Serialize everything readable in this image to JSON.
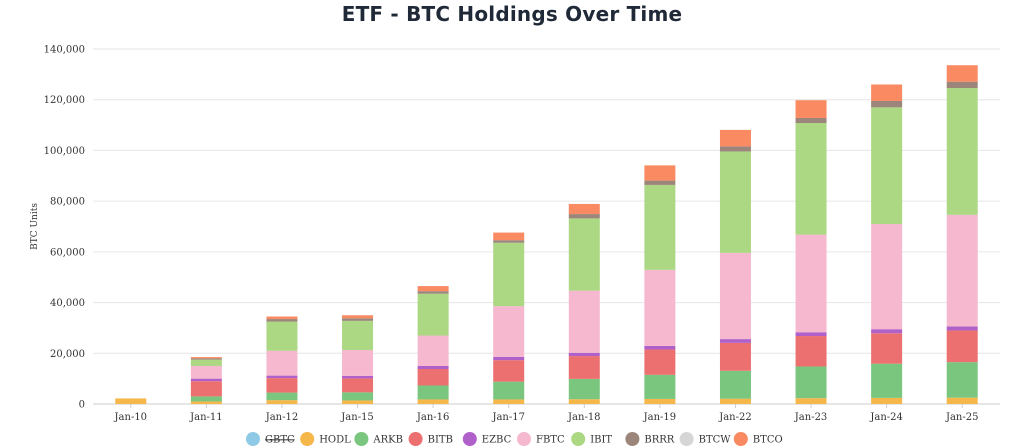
{
  "chart_data": {
    "type": "bar",
    "stacked": true,
    "title": "ETF - BTC Holdings Over Time",
    "xlabel": "",
    "ylabel": "BTC Units",
    "ylim": [
      0,
      140000
    ],
    "yticks": [
      "0",
      "20,000",
      "40,000",
      "60,000",
      "80,000",
      "100,000",
      "120,000",
      "140,000"
    ],
    "grid": true,
    "legend_position": "bottom",
    "categories": [
      "Jan-10",
      "Jan-11",
      "Jan-12",
      "Jan-15",
      "Jan-16",
      "Jan-17",
      "Jan-18",
      "Jan-19",
      "Jan-22",
      "Jan-23",
      "Jan-24",
      "Jan-25"
    ],
    "series": [
      {
        "name": "GBTC",
        "color": "#8ecae6",
        "hidden": true,
        "values": [
          0,
          0,
          0,
          0,
          0,
          0,
          0,
          0,
          0,
          0,
          0,
          0
        ]
      },
      {
        "name": "HODL",
        "color": "#f5b74a",
        "values": [
          2200,
          1000,
          1500,
          1400,
          1800,
          1800,
          1900,
          2000,
          2100,
          2300,
          2400,
          2500
        ]
      },
      {
        "name": "ARKB",
        "color": "#7ac67e",
        "values": [
          0,
          2000,
          3000,
          3200,
          5500,
          7000,
          8000,
          9500,
          11000,
          12500,
          13500,
          14000
        ]
      },
      {
        "name": "BITB",
        "color": "#ec7070",
        "values": [
          0,
          6000,
          5700,
          5500,
          6500,
          8500,
          9000,
          10000,
          11000,
          12000,
          12000,
          12500
        ]
      },
      {
        "name": "EZBC",
        "color": "#b061c9",
        "values": [
          0,
          1000,
          1000,
          1000,
          1200,
          1300,
          1300,
          1400,
          1500,
          1500,
          1600,
          1600
        ]
      },
      {
        "name": "FBTC",
        "color": "#f5b8cf",
        "values": [
          0,
          5000,
          9800,
          10200,
          12000,
          20000,
          24500,
          30000,
          34000,
          38500,
          41500,
          44000
        ]
      },
      {
        "name": "IBIT",
        "color": "#acd783",
        "values": [
          0,
          2500,
          11500,
          11500,
          16500,
          25000,
          28500,
          33500,
          40000,
          44000,
          46000,
          50000
        ]
      },
      {
        "name": "BRRR",
        "color": "#9c857a",
        "values": [
          0,
          500,
          1000,
          1000,
          1000,
          1000,
          1700,
          1700,
          2000,
          2000,
          2500,
          2500
        ]
      },
      {
        "name": "BTCW",
        "color": "#d6d6d6",
        "values": [
          0,
          0,
          0,
          0,
          0,
          0,
          0,
          0,
          0,
          0,
          0,
          0
        ]
      },
      {
        "name": "BTCO",
        "color": "#f98a62",
        "values": [
          0,
          500,
          1000,
          1200,
          2000,
          3000,
          4000,
          6000,
          6500,
          7000,
          6500,
          6500
        ]
      }
    ]
  }
}
